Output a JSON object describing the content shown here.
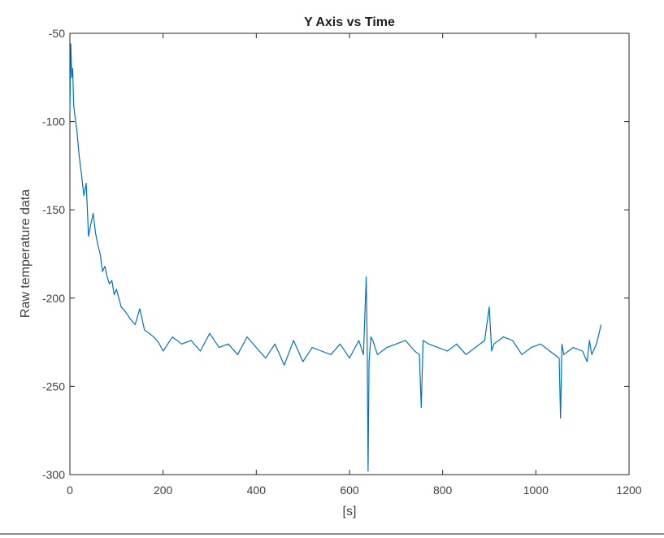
{
  "chart_data": {
    "type": "line",
    "title": "Y Axis vs Time",
    "xlabel": "[s]",
    "ylabel": "Raw temperature data",
    "xlim": [
      0,
      1200
    ],
    "ylim": [
      -300,
      -50
    ],
    "xticks": [
      0,
      200,
      400,
      600,
      800,
      1000,
      1200
    ],
    "yticks": [
      -50,
      -100,
      -150,
      -200,
      -250,
      -300
    ],
    "grid": false,
    "line_color": "#0072BD",
    "series": [
      {
        "values_x": [
          0,
          2,
          4,
          6,
          8,
          10,
          15,
          20,
          25,
          30,
          35,
          40,
          45,
          50,
          55,
          60,
          65,
          70,
          75,
          80,
          85,
          90,
          95,
          100,
          110,
          120,
          130,
          140,
          150,
          160,
          170,
          180,
          190,
          200,
          220,
          240,
          260,
          280,
          300,
          320,
          340,
          360,
          380,
          400,
          420,
          440,
          460,
          480,
          500,
          520,
          540,
          560,
          580,
          600,
          620,
          630,
          636,
          638,
          640,
          642,
          646,
          650,
          660,
          680,
          700,
          720,
          740,
          750,
          754,
          758,
          770,
          790,
          810,
          830,
          850,
          870,
          890,
          900,
          905,
          910,
          930,
          950,
          970,
          990,
          1010,
          1030,
          1050,
          1053,
          1056,
          1060,
          1080,
          1100,
          1110,
          1115,
          1120,
          1130,
          1140
        ],
        "values_y": [
          -95,
          -56,
          -75,
          -70,
          -90,
          -95,
          -105,
          -120,
          -130,
          -142,
          -135,
          -165,
          -158,
          -152,
          -163,
          -170,
          -175,
          -185,
          -182,
          -188,
          -192,
          -190,
          -198,
          -195,
          -205,
          -208,
          -212,
          -215,
          -206,
          -218,
          -220,
          -222,
          -225,
          -230,
          -222,
          -226,
          -224,
          -230,
          -220,
          -228,
          -226,
          -232,
          -222,
          -228,
          -234,
          -226,
          -238,
          -224,
          -236,
          -228,
          -230,
          -232,
          -226,
          -234,
          -224,
          -232,
          -188,
          -226,
          -298,
          -236,
          -222,
          -224,
          -232,
          -228,
          -226,
          -224,
          -230,
          -232,
          -262,
          -224,
          -226,
          -228,
          -230,
          -226,
          -232,
          -228,
          -224,
          -205,
          -230,
          -226,
          -222,
          -224,
          -232,
          -228,
          -226,
          -230,
          -234,
          -268,
          -226,
          -232,
          -228,
          -230,
          -236,
          -224,
          -232,
          -226,
          -215
        ]
      }
    ]
  }
}
